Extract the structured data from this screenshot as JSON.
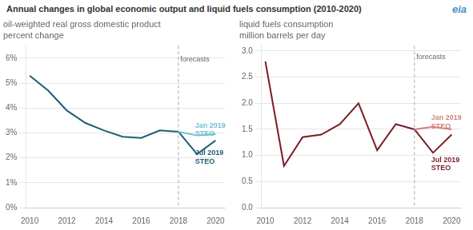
{
  "title": "Annual changes in global economic output and liquid fuels consumption (2010-2020)",
  "logo": {
    "text": "eia",
    "color": "#4a90c4"
  },
  "chart_data": [
    {
      "type": "line",
      "title": "oil-weighted real gross domestic product",
      "subtitle": "percent change",
      "series": [
        {
          "color": "#1c5f72",
          "x": [
            2010,
            2011,
            2012,
            2013,
            2014,
            2015,
            2016,
            2017,
            2018
          ],
          "values": [
            5.3,
            4.7,
            3.9,
            3.4,
            3.1,
            2.85,
            2.8,
            3.1,
            3.05
          ]
        },
        {
          "color": "#6dc0d5",
          "x": [
            2018,
            2019,
            2020
          ],
          "values": [
            3.05,
            2.9,
            2.95
          ]
        },
        {
          "color": "#1c5f72",
          "x": [
            2018,
            2019,
            2020
          ],
          "values": [
            3.05,
            2.15,
            2.7
          ]
        }
      ],
      "xlim": [
        2009.8,
        2020.5
      ],
      "xticks": [
        2010,
        2012,
        2014,
        2016,
        2018,
        2020
      ],
      "ylim": [
        0,
        6.5
      ],
      "yticks": [
        {
          "value": 0,
          "label": "0%"
        },
        {
          "value": 1,
          "label": "1%"
        },
        {
          "value": 2,
          "label": "2%"
        },
        {
          "value": 3,
          "label": "3%"
        },
        {
          "value": 4,
          "label": "4%"
        },
        {
          "value": 5,
          "label": "5%"
        },
        {
          "value": 6,
          "label": "6%"
        }
      ],
      "grid": "y",
      "vline": {
        "x": 2018,
        "line_style": "dashed",
        "color": "#aaaaaa"
      },
      "annotations": [
        {
          "text": "forecasts",
          "x": 2018.1,
          "y": 6.1
        },
        {
          "text": "Jan 2019\nSTEO",
          "x": 2018.9,
          "y": 3.1,
          "color": "#6dc0d5"
        },
        {
          "text": "Jul 2019\nSTEO",
          "x": 2018.9,
          "y": 2.0,
          "color": "#1c5f72"
        }
      ]
    },
    {
      "type": "line",
      "title": "liquid fuels consumption",
      "subtitle": "million barrels per day",
      "series": [
        {
          "color": "#7b1e28",
          "x": [
            2010,
            2011,
            2012,
            2013,
            2014,
            2015,
            2016,
            2017,
            2018
          ],
          "values": [
            2.8,
            0.8,
            1.35,
            1.4,
            1.6,
            2.0,
            1.1,
            1.6,
            1.5
          ]
        },
        {
          "color": "#d4807a",
          "x": [
            2018,
            2019,
            2020
          ],
          "values": [
            1.5,
            1.55,
            1.5
          ]
        },
        {
          "color": "#7b1e28",
          "x": [
            2018,
            2019,
            2020
          ],
          "values": [
            1.5,
            1.05,
            1.4
          ]
        }
      ],
      "xlim": [
        2009.8,
        2020.5
      ],
      "xticks": [
        2010,
        2012,
        2014,
        2016,
        2018,
        2020
      ],
      "ylim": [
        0.0,
        3.1
      ],
      "yticks": [
        {
          "value": 0,
          "label": "0.0"
        },
        0.5,
        {
          "value": 1,
          "label": "1.0"
        },
        1.5,
        {
          "value": 2,
          "label": "2.0"
        },
        2.5,
        {
          "value": 3,
          "label": "3.0"
        }
      ],
      "grid": "y",
      "vline": {
        "x": 2018,
        "line_style": "dashed",
        "color": "#aaaaaa"
      },
      "annotations": [
        {
          "text": "forecasts",
          "x": 2018.1,
          "y": 2.95
        },
        {
          "text": "Jan 2019\nSTEO",
          "x": 2018.9,
          "y": 1.62,
          "color": "#d4807a"
        },
        {
          "text": "Jul 2019\nSTEO",
          "x": 2018.9,
          "y": 0.82,
          "color": "#7b1e28"
        }
      ]
    }
  ]
}
